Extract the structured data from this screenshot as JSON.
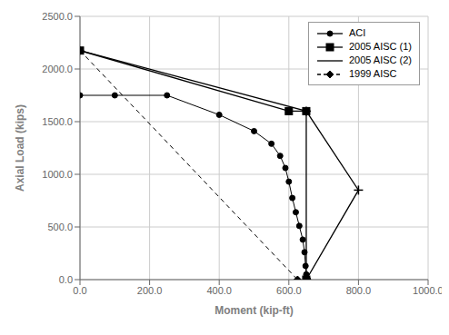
{
  "chart_data": {
    "type": "line",
    "xlabel": "Moment (kip-ft)",
    "ylabel": "Axial Load (kips)",
    "xlim": [
      0.0,
      1000.0
    ],
    "ylim": [
      0.0,
      2500.0
    ],
    "xticks": [
      {
        "value": 0,
        "label": "0.0"
      },
      {
        "value": 200,
        "label": "200.0"
      },
      {
        "value": 400,
        "label": "400.0"
      },
      {
        "value": 600,
        "label": "600.0"
      },
      {
        "value": 800,
        "label": "800.0"
      },
      {
        "value": 1000,
        "label": "1000.0"
      }
    ],
    "yticks": [
      {
        "value": 0,
        "label": "0.0"
      },
      {
        "value": 500,
        "label": "500.0"
      },
      {
        "value": 1000,
        "label": "1000.0"
      },
      {
        "value": 1500,
        "label": "1500.0"
      },
      {
        "value": 2000,
        "label": "2000.0"
      },
      {
        "value": 2500,
        "label": "2500.0"
      }
    ],
    "grid": true,
    "legend": "upper right",
    "series": [
      {
        "name": "ACI",
        "color": "black",
        "marker": "circle",
        "line_style": "solid",
        "x": [
          0,
          100,
          250,
          400,
          500,
          550,
          575,
          590,
          600,
          610,
          620,
          630,
          640,
          645,
          648,
          650,
          655
        ],
        "values": [
          1750,
          1750,
          1750,
          1565,
          1410,
          1290,
          1175,
          1060,
          930,
          775,
          640,
          510,
          380,
          260,
          130,
          50,
          0
        ]
      },
      {
        "name": "2005 AISC (1)",
        "color": "black",
        "marker": "square",
        "line_style": "solid",
        "x": [
          0,
          600,
          650,
          650
        ],
        "values": [
          2175,
          1600,
          1600,
          0
        ]
      },
      {
        "name": "2005 AISC (2)",
        "color": "black",
        "marker": "plus",
        "line_style": "solid",
        "x": [
          0,
          650,
          800,
          650
        ],
        "values": [
          2175,
          1600,
          850,
          0
        ]
      },
      {
        "name": "1999 AISC",
        "color": "black",
        "marker": "diamond",
        "line_style": "dashed",
        "x": [
          0,
          625
        ],
        "values": [
          2175,
          0
        ]
      }
    ]
  }
}
